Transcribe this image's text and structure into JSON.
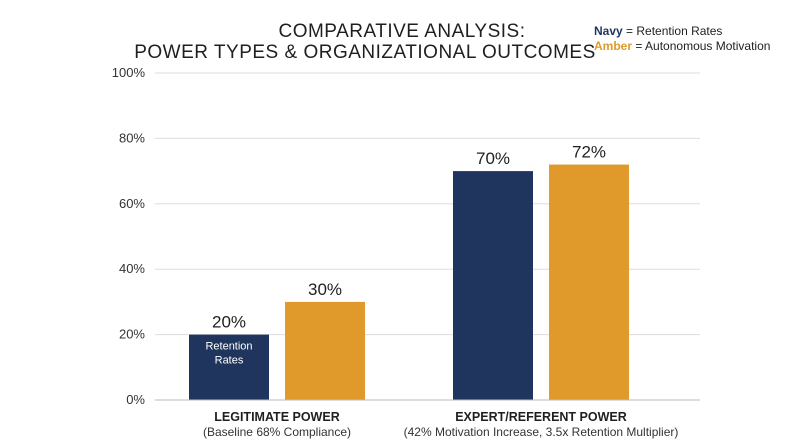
{
  "chart_data": {
    "type": "bar",
    "title_lines": [
      "COMPARATIVE ANALYSIS:",
      "POWER TYPES & ORGANIZATIONAL OUTCOMES"
    ],
    "categories": [
      {
        "label": "LEGITIMATE POWER",
        "sublabel": "(Baseline 68% Compliance)"
      },
      {
        "label": "EXPERT/REFERENT POWER",
        "sublabel": "(42% Motivation Increase, 3.5x Retention Multiplier)"
      }
    ],
    "series": [
      {
        "color": "#1f355e",
        "values": [
          20,
          70
        ],
        "value_labels": [
          "20%",
          "70%"
        ]
      },
      {
        "color": "#e09a2c",
        "values": [
          30,
          72
        ],
        "value_labels": [
          "30%",
          "72%"
        ]
      }
    ],
    "in_bar_label": [
      "Retention",
      "Rates"
    ],
    "ylim": [
      0,
      100
    ],
    "yticks": [
      "0%",
      "20%",
      "40%",
      "60%",
      "80%",
      "100%"
    ],
    "ytick_values": [
      0,
      20,
      40,
      60,
      80,
      100
    ],
    "grid": true,
    "legend": {
      "placement": "top-right",
      "entries": [
        {
          "key": "Navy",
          "text": "= Retention Rates",
          "color": "#1f355e"
        },
        {
          "key": "Amber",
          "text": "= Autonomous Motivation",
          "color": "#e09a2c"
        }
      ]
    }
  }
}
